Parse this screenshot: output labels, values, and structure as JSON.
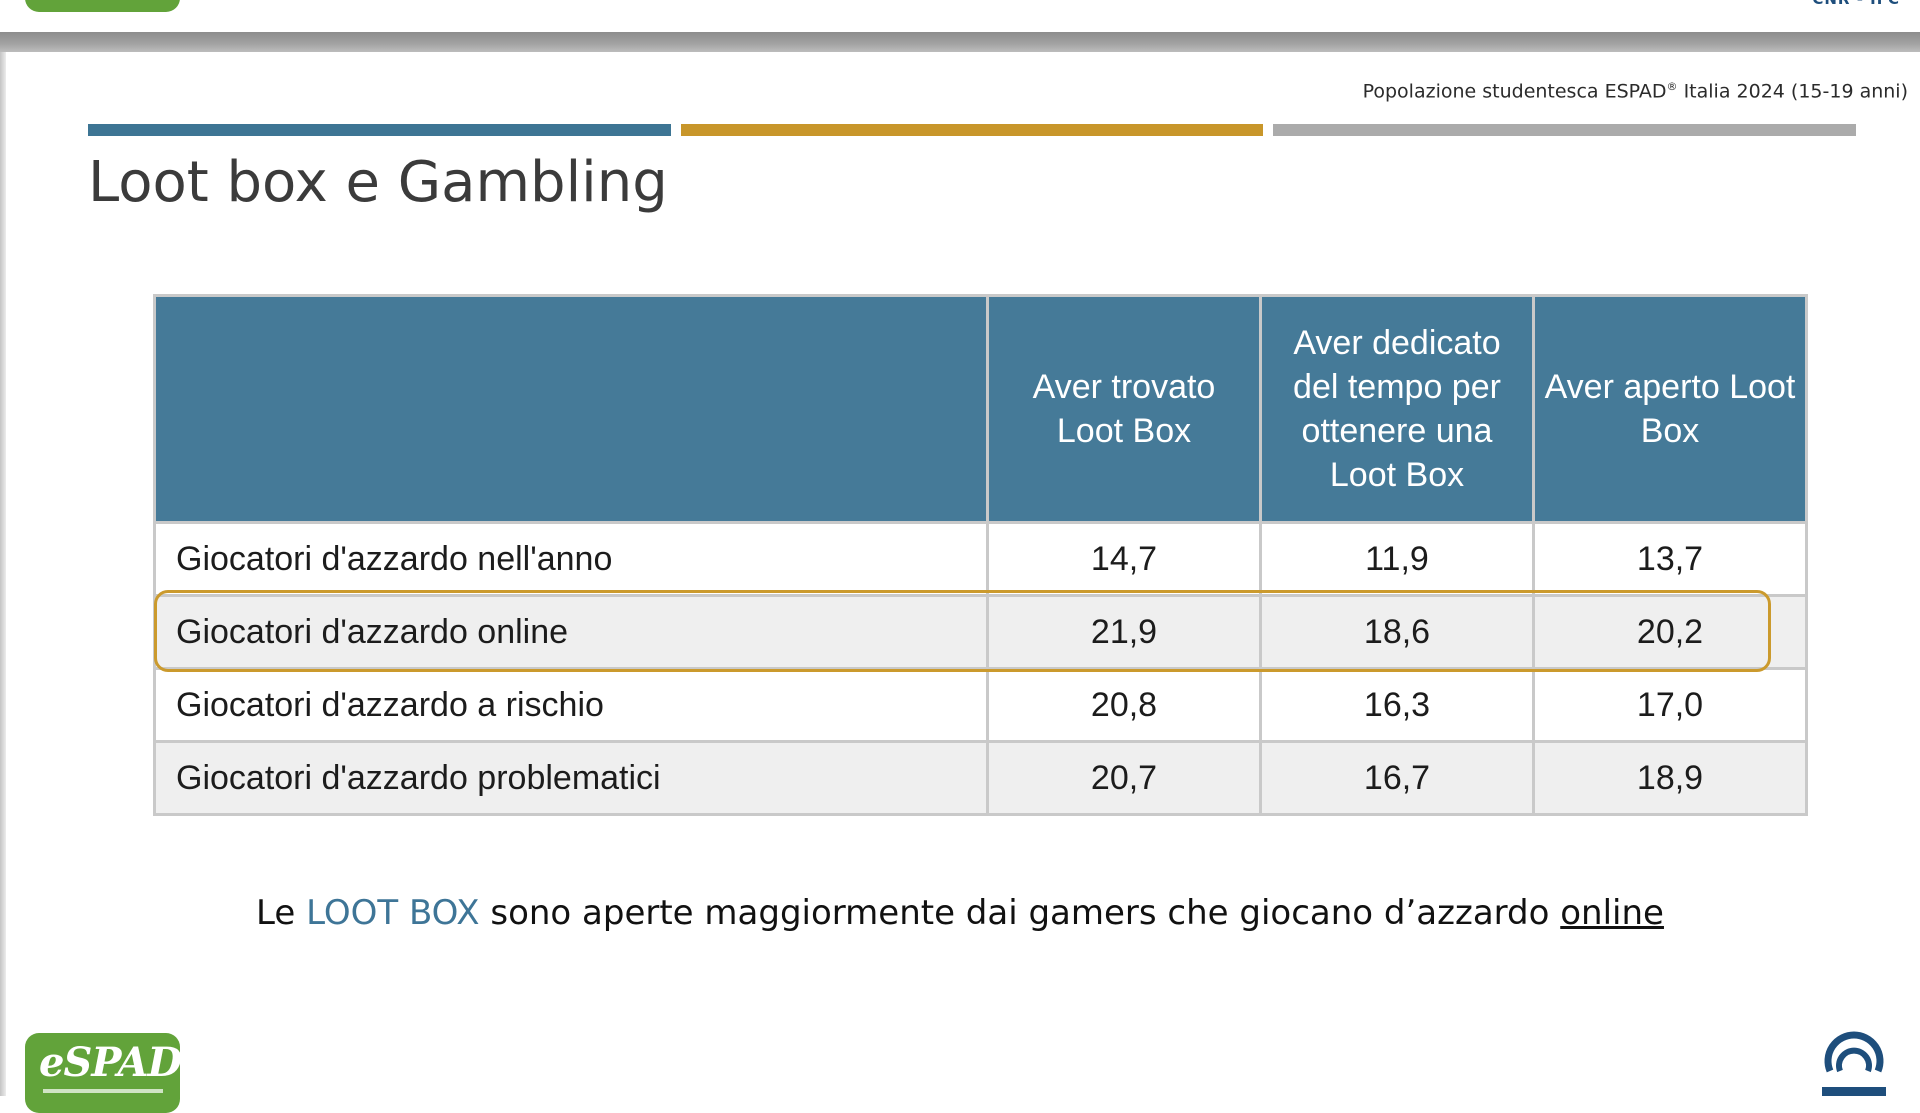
{
  "header": {
    "subtitle_text": "Popolazione studentesca ESPAD",
    "subtitle_sup": "®",
    "subtitle_rest": "Italia 2024 (15-19 anni)",
    "title": "Loot box e Gambling"
  },
  "colors": {
    "accent_blue": "#3d7594",
    "accent_gold": "#c8962a",
    "accent_gray": "#ababab",
    "header_fill": "#457a98",
    "highlight_border": "#cb9a2d"
  },
  "table": {
    "columns": [
      "Aver trovato Loot Box",
      "Aver dedicato del tempo per ottenere una Loot Box",
      "Aver aperto Loot Box"
    ],
    "rows": [
      {
        "label": "Giocatori d'azzardo nell'anno",
        "values": [
          "14,7",
          "11,9",
          "13,7"
        ]
      },
      {
        "label": "Giocatori d'azzardo online",
        "values": [
          "21,9",
          "18,6",
          "20,2"
        ],
        "highlighted": true
      },
      {
        "label": "Giocatori d'azzardo a rischio",
        "values": [
          "20,8",
          "16,3",
          "17,0"
        ]
      },
      {
        "label": "Giocatori d'azzardo problematici",
        "values": [
          "20,7",
          "16,7",
          "18,9"
        ]
      }
    ]
  },
  "caption": {
    "prefix": "Le",
    "keyword": "LOOT BOX",
    "middle": "sono aperte maggiormente dai gamers che giocano d’azzardo",
    "underlined": "online"
  },
  "logos": {
    "espad": "eSPAD",
    "cnr": "CNR - IFC"
  },
  "icons": [
    "espad-logo-icon",
    "cnr-ifc-logo-icon"
  ]
}
